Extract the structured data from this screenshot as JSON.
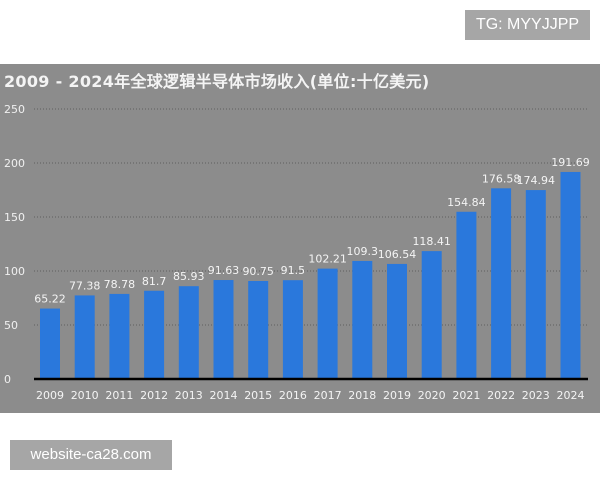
{
  "watermark_top": "TG: MYYJJPP",
  "watermark_bottom": "website-ca28.com",
  "chart_data": {
    "type": "bar",
    "title": "2009 - 2024年全球逻辑半导体市场收入(单位:十亿美元)",
    "xlabel": "",
    "ylabel": "",
    "categories": [
      "2009",
      "2010",
      "2011",
      "2012",
      "2013",
      "2014",
      "2015",
      "2016",
      "2017",
      "2018",
      "2019",
      "2020",
      "2021",
      "2022",
      "2023",
      "2024"
    ],
    "values": [
      65.22,
      77.38,
      78.78,
      81.7,
      85.93,
      91.63,
      90.75,
      91.5,
      102.21,
      109.3,
      106.54,
      118.41,
      154.84,
      176.58,
      174.94,
      191.69
    ],
    "ylim": [
      0,
      250
    ],
    "yticks": [
      0,
      50,
      100,
      150,
      200,
      250
    ],
    "grid": true,
    "bar_color": "#2a78dc",
    "background_color": "#8c8c8c"
  }
}
